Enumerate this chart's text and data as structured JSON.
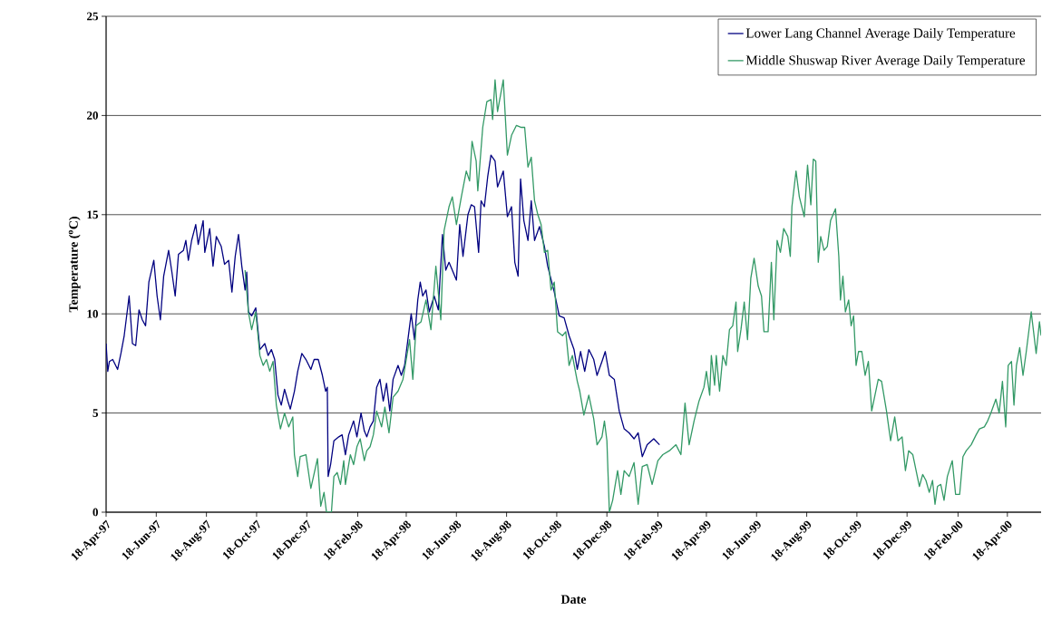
{
  "chart_data": {
    "type": "line",
    "xlabel": "Date",
    "ylabel": "Temperature ($^{o}$C)",
    "xlim": [
      "1997-04-18",
      "2000-05-29"
    ],
    "ylim": [
      0,
      25
    ],
    "yticks": [
      0,
      5,
      10,
      15,
      20,
      25
    ],
    "xticks": [
      {
        "value": "1997-04-18",
        "label": "18-Apr-97"
      },
      {
        "value": "1997-06-18",
        "label": "18-Jun-97"
      },
      {
        "value": "1997-08-18",
        "label": "18-Aug-97"
      },
      {
        "value": "1997-10-18",
        "label": "18-Oct-97"
      },
      {
        "value": "1997-12-18",
        "label": "18-Dec-97"
      },
      {
        "value": "1998-02-18",
        "label": "18-Feb-98"
      },
      {
        "value": "1998-04-18",
        "label": "18-Apr-98"
      },
      {
        "value": "1998-06-18",
        "label": "18-Jun-98"
      },
      {
        "value": "1998-08-18",
        "label": "18-Aug-98"
      },
      {
        "value": "1998-10-18",
        "label": "18-Oct-98"
      },
      {
        "value": "1998-12-18",
        "label": "18-Dec-98"
      },
      {
        "value": "1999-02-18",
        "label": "18-Feb-99"
      },
      {
        "value": "1999-04-18",
        "label": "18-Apr-99"
      },
      {
        "value": "1999-06-18",
        "label": "18-Jun-99"
      },
      {
        "value": "1999-08-18",
        "label": "18-Aug-99"
      },
      {
        "value": "1999-10-18",
        "label": "18-Oct-99"
      },
      {
        "value": "1999-12-18",
        "label": "18-Dec-99"
      },
      {
        "value": "2000-02-18",
        "label": "18-Feb-00"
      },
      {
        "value": "2000-04-18",
        "label": "18-Apr-00"
      }
    ],
    "grid": "y",
    "legend": "top right",
    "series": [
      {
        "name": "Lower Lang Channel Average Daily Temperature",
        "color": "#000080",
        "x": [
          "1997-04-18",
          "1997-04-20",
          "1997-04-22",
          "1997-04-26",
          "1997-05-02",
          "1997-05-06",
          "1997-05-10",
          "1997-05-16",
          "1997-05-20",
          "1997-05-24",
          "1997-05-28",
          "1997-06-01",
          "1997-06-05",
          "1997-06-09",
          "1997-06-15",
          "1997-06-19",
          "1997-06-23",
          "1997-06-27",
          "1997-07-03",
          "1997-07-07",
          "1997-07-11",
          "1997-07-15",
          "1997-07-21",
          "1997-07-24",
          "1997-07-27",
          "1997-07-31",
          "1997-08-05",
          "1997-08-08",
          "1997-08-14",
          "1997-08-16",
          "1997-08-22",
          "1997-08-26",
          "1997-08-30",
          "1997-09-05",
          "1997-09-09",
          "1997-09-14",
          "1997-09-18",
          "1997-09-22",
          "1997-09-26",
          "1997-09-30",
          "1997-10-04",
          "1997-10-06",
          "1997-10-08",
          "1997-10-12",
          "1997-10-17",
          "1997-10-22",
          "1997-10-28",
          "1997-11-01",
          "1997-11-05",
          "1997-11-09",
          "1997-11-13",
          "1997-11-17",
          "1997-11-21",
          "1997-11-25",
          "1997-11-28",
          "1997-12-03",
          "1997-12-07",
          "1997-12-12",
          "1997-12-17",
          "1997-12-23",
          "1997-12-27",
          "1998-01-01",
          "1998-01-06",
          "1998-01-10",
          "1998-01-12",
          "1998-01-13",
          "1998-01-16",
          "1998-01-20",
          "1998-01-26",
          "1998-01-30",
          "1998-02-03",
          "1998-02-07",
          "1998-02-13",
          "1998-02-17",
          "1998-02-22",
          "1998-02-26",
          "1998-03-01",
          "1998-03-05",
          "1998-03-09",
          "1998-03-13",
          "1998-03-17",
          "1998-03-21",
          "1998-03-25",
          "1998-03-29",
          "1998-04-02",
          "1998-04-08",
          "1998-04-12",
          "1998-04-16",
          "1998-04-24",
          "1998-04-28",
          "1998-05-02",
          "1998-05-05",
          "1998-05-08",
          "1998-05-12",
          "1998-05-16",
          "1998-05-22",
          "1998-05-27",
          "1998-06-01",
          "1998-06-05",
          "1998-06-09",
          "1998-06-13",
          "1998-06-18",
          "1998-06-22",
          "1998-06-26",
          "1998-07-02",
          "1998-07-06",
          "1998-07-10",
          "1998-07-15",
          "1998-07-18",
          "1998-07-22",
          "1998-07-26",
          "1998-07-30",
          "1998-08-04",
          "1998-08-07",
          "1998-08-14",
          "1998-08-19",
          "1998-08-24",
          "1998-08-28",
          "1998-09-01",
          "1998-09-04",
          "1998-09-08",
          "1998-09-13",
          "1998-09-17",
          "1998-09-21",
          "1998-09-27",
          "1998-10-03",
          "1998-10-07",
          "1998-10-15",
          "1998-10-21",
          "1998-10-27",
          "1998-11-02",
          "1998-11-08",
          "1998-11-12",
          "1998-11-16",
          "1998-11-21",
          "1998-11-26",
          "1998-12-02",
          "1998-12-06",
          "1998-12-12",
          "1998-12-16",
          "1998-12-21",
          "1998-12-27",
          "1999-01-02",
          "1999-01-08",
          "1999-01-14",
          "1999-01-20",
          "1999-01-25",
          "1999-01-30",
          "1999-02-05",
          "1999-02-13",
          "1999-02-20"
        ],
        "values": [
          8.5,
          7.1,
          7.6,
          7.7,
          7.2,
          8.0,
          8.9,
          10.9,
          8.5,
          8.4,
          10.2,
          9.7,
          9.4,
          11.6,
          12.7,
          10.9,
          9.7,
          11.9,
          13.2,
          12.1,
          10.9,
          13.0,
          13.2,
          13.7,
          12.7,
          13.7,
          14.5,
          13.5,
          14.7,
          13.1,
          14.3,
          12.4,
          13.9,
          13.4,
          12.5,
          12.7,
          11.1,
          12.9,
          14.0,
          12.4,
          11.2,
          12.1,
          10.1,
          9.9,
          10.3,
          8.2,
          8.5,
          7.9,
          8.2,
          7.7,
          5.9,
          5.4,
          6.2,
          5.6,
          5.2,
          6.1,
          7.1,
          8.0,
          7.7,
          7.2,
          7.7,
          7.7,
          6.9,
          6.1,
          6.3,
          1.8,
          2.4,
          3.6,
          3.8,
          3.9,
          2.9,
          3.9,
          4.6,
          3.8,
          5.0,
          4.1,
          3.8,
          4.3,
          4.6,
          6.3,
          6.7,
          5.6,
          6.5,
          5.1,
          6.7,
          7.4,
          6.9,
          7.4,
          10.0,
          8.7,
          10.7,
          11.6,
          10.9,
          11.2,
          10.1,
          10.9,
          10.2,
          14.0,
          12.2,
          12.6,
          12.2,
          11.7,
          14.5,
          12.9,
          15.0,
          15.5,
          15.4,
          13.1,
          15.7,
          15.4,
          16.9,
          18.0,
          17.7,
          16.4,
          17.2,
          14.9,
          15.4,
          12.6,
          11.9,
          16.8,
          14.7,
          13.7,
          15.7,
          13.7,
          14.4,
          13.4,
          12.4,
          11.1,
          9.9,
          9.8,
          8.9,
          8.2,
          7.2,
          8.1,
          7.1,
          8.2,
          7.7,
          6.9,
          7.6,
          8.1,
          6.9,
          6.7,
          5.1,
          4.2,
          4.0,
          3.7,
          4.0,
          2.8,
          3.4,
          3.7,
          3.4
        ]
      },
      {
        "name": "Middle Shuswap River Average Daily Temperature",
        "color": "#339966",
        "x": [
          "1997-10-04",
          "1997-10-08",
          "1997-10-12",
          "1997-10-17",
          "1997-10-22",
          "1997-10-26",
          "1997-10-30",
          "1997-11-03",
          "1997-11-07",
          "1997-11-11",
          "1997-11-16",
          "1997-11-21",
          "1997-11-26",
          "1997-12-01",
          "1997-12-03",
          "1997-12-07",
          "1997-12-10",
          "1997-12-17",
          "1997-12-23",
          "1997-12-31",
          "1998-01-04",
          "1998-01-08",
          "1998-01-11",
          "1998-01-17",
          "1998-01-20",
          "1998-01-24",
          "1998-01-28",
          "1998-02-01",
          "1998-02-03",
          "1998-02-09",
          "1998-02-13",
          "1998-02-17",
          "1998-02-21",
          "1998-02-26",
          "1998-03-01",
          "1998-03-05",
          "1998-03-09",
          "1998-03-13",
          "1998-03-19",
          "1998-03-23",
          "1998-03-28",
          "1998-04-02",
          "1998-04-08",
          "1998-04-14",
          "1998-04-22",
          "1998-04-26",
          "1998-04-30",
          "1998-05-06",
          "1998-05-12",
          "1998-05-18",
          "1998-05-24",
          "1998-05-30",
          "1998-06-03",
          "1998-06-09",
          "1998-06-13",
          "1998-06-18",
          "1998-06-24",
          "1998-06-30",
          "1998-07-04",
          "1998-07-07",
          "1998-07-12",
          "1998-07-14",
          "1998-07-20",
          "1998-07-25",
          "1998-07-30",
          "1998-08-01",
          "1998-08-04",
          "1998-08-07",
          "1998-08-14",
          "1998-08-19",
          "1998-08-24",
          "1998-08-30",
          "1998-09-05",
          "1998-09-09",
          "1998-09-13",
          "1998-09-17",
          "1998-09-21",
          "1998-09-25",
          "1998-09-29",
          "1998-10-03",
          "1998-10-07",
          "1998-10-11",
          "1998-10-15",
          "1998-10-19",
          "1998-10-25",
          "1998-10-29",
          "1998-11-02",
          "1998-11-06",
          "1998-11-12",
          "1998-11-15",
          "1998-11-20",
          "1998-11-26",
          "1998-12-02",
          "1998-12-06",
          "1998-12-12",
          "1998-12-15",
          "1998-12-18",
          "1998-12-21",
          "1998-12-25",
          "1998-12-31",
          "1999-01-04",
          "1999-01-08",
          "1999-01-14",
          "1999-01-20",
          "1999-01-25",
          "1999-01-30",
          "1999-02-05",
          "1999-02-11",
          "1999-02-18",
          "1999-02-24",
          "1999-03-04",
          "1999-03-12",
          "1999-03-18",
          "1999-03-23",
          "1999-03-28",
          "1999-04-03",
          "1999-04-09",
          "1999-04-15",
          "1999-04-18",
          "1999-04-22",
          "1999-04-24",
          "1999-04-28",
          "1999-04-30",
          "1999-05-04",
          "1999-05-08",
          "1999-05-12",
          "1999-05-16",
          "1999-05-20",
          "1999-05-24",
          "1999-05-26",
          "1999-05-30",
          "1999-06-03",
          "1999-06-07",
          "1999-06-11",
          "1999-06-15",
          "1999-06-20",
          "1999-06-24",
          "1999-06-27",
          "1999-07-02",
          "1999-07-06",
          "1999-07-09",
          "1999-07-13",
          "1999-07-17",
          "1999-07-21",
          "1999-07-26",
          "1999-07-29",
          "1999-07-31",
          "1999-08-05",
          "1999-08-09",
          "1999-08-15",
          "1999-08-19",
          "1999-08-23",
          "1999-08-26",
          "1999-08-29",
          "1999-09-01",
          "1999-09-04",
          "1999-09-08",
          "1999-09-12",
          "1999-09-16",
          "1999-09-22",
          "1999-09-26",
          "1999-09-28",
          "1999-10-01",
          "1999-10-04",
          "1999-10-08",
          "1999-10-11",
          "1999-10-14",
          "1999-10-17",
          "1999-10-20",
          "1999-10-24",
          "1999-10-28",
          "1999-11-01",
          "1999-11-05",
          "1999-11-09",
          "1999-11-13",
          "1999-11-17",
          "1999-11-23",
          "1999-11-28",
          "1999-12-03",
          "1999-12-07",
          "1999-12-12",
          "1999-12-16",
          "1999-12-20",
          "1999-12-25",
          "1999-12-29",
          "2000-01-02",
          "2000-01-06",
          "2000-01-10",
          "2000-01-14",
          "2000-01-18",
          "2000-01-21",
          "2000-01-24",
          "2000-01-28",
          "2000-02-01",
          "2000-02-05",
          "2000-02-11",
          "2000-02-15",
          "2000-02-20",
          "2000-02-24",
          "2000-02-28",
          "2000-03-05",
          "2000-03-11",
          "2000-03-15",
          "2000-03-21",
          "2000-03-25",
          "2000-03-29",
          "2000-04-04",
          "2000-04-08",
          "2000-04-12",
          "2000-04-16",
          "2000-04-19",
          "2000-04-23",
          "2000-04-26",
          "2000-04-29",
          "2000-05-03",
          "2000-05-07",
          "2000-05-11",
          "2000-05-17",
          "2000-05-23",
          "2000-05-27",
          "2000-05-29"
        ],
        "values": [
          12.2,
          10.1,
          9.2,
          10.1,
          7.9,
          7.4,
          7.7,
          7.1,
          7.6,
          5.4,
          4.2,
          5.0,
          4.3,
          4.8,
          2.9,
          1.8,
          2.8,
          2.9,
          1.2,
          2.7,
          0.3,
          1.0,
          0,
          0,
          1.8,
          2.0,
          1.4,
          2.6,
          1.4,
          2.9,
          2.4,
          3.3,
          3.7,
          2.6,
          3.1,
          3.3,
          3.9,
          5.1,
          4.3,
          5.3,
          4.0,
          5.8,
          6.1,
          6.7,
          8.7,
          6.7,
          9.4,
          9.6,
          10.7,
          9.2,
          12.4,
          9.7,
          14.2,
          15.4,
          15.9,
          14.5,
          15.9,
          17.2,
          16.7,
          18.7,
          17.7,
          16.2,
          19.4,
          20.7,
          20.8,
          19.8,
          21.8,
          20.2,
          21.8,
          18.0,
          19.0,
          19.5,
          19.4,
          19.4,
          17.4,
          17.9,
          15.7,
          15.0,
          14.5,
          13.1,
          13.2,
          11.2,
          11.6,
          9.1,
          8.9,
          9.1,
          7.4,
          7.9,
          6.6,
          6.1,
          4.9,
          5.9,
          4.7,
          3.4,
          3.8,
          4.6,
          3.6,
          0,
          0.6,
          2.1,
          0.9,
          2.1,
          1.8,
          2.5,
          0.4,
          2.3,
          2.4,
          1.4,
          2.6,
          2.9,
          3.1,
          3.4,
          2.9,
          5.5,
          3.4,
          4.6,
          5.6,
          6.3,
          7.1,
          5.9,
          7.9,
          6.4,
          7.9,
          6.1,
          7.9,
          7.4,
          9.2,
          9.4,
          10.6,
          8.1,
          9.2,
          10.6,
          8.7,
          11.8,
          12.8,
          11.4,
          10.9,
          9.1,
          9.1,
          12.6,
          9.7,
          13.7,
          13.1,
          14.3,
          13.9,
          12.9,
          15.4,
          17.2,
          15.9,
          14.9,
          17.5,
          15.5,
          17.8,
          17.7,
          12.6,
          13.9,
          13.2,
          13.4,
          14.7,
          15.3,
          12.9,
          10.7,
          11.9,
          10.1,
          10.7,
          9.4,
          9.9,
          7.4,
          8.1,
          8.1,
          6.9,
          7.6,
          5.1,
          5.9,
          6.7,
          6.6,
          5.1,
          3.6,
          4.8,
          3.6,
          3.8,
          2.1,
          3.1,
          2.9,
          2.1,
          1.3,
          1.9,
          1.6,
          1.0,
          1.6,
          0.4,
          1.3,
          1.4,
          0.6,
          1.8,
          2.6,
          0.9,
          0.9,
          2.8,
          3.1,
          3.4,
          3.9,
          4.2,
          4.3,
          4.6,
          5.0,
          5.7,
          5.0,
          6.6,
          4.3,
          7.4,
          7.6,
          5.4,
          7.4,
          8.3,
          6.9,
          8.1,
          10.1,
          8.0,
          9.6,
          8.9
        ]
      }
    ]
  }
}
